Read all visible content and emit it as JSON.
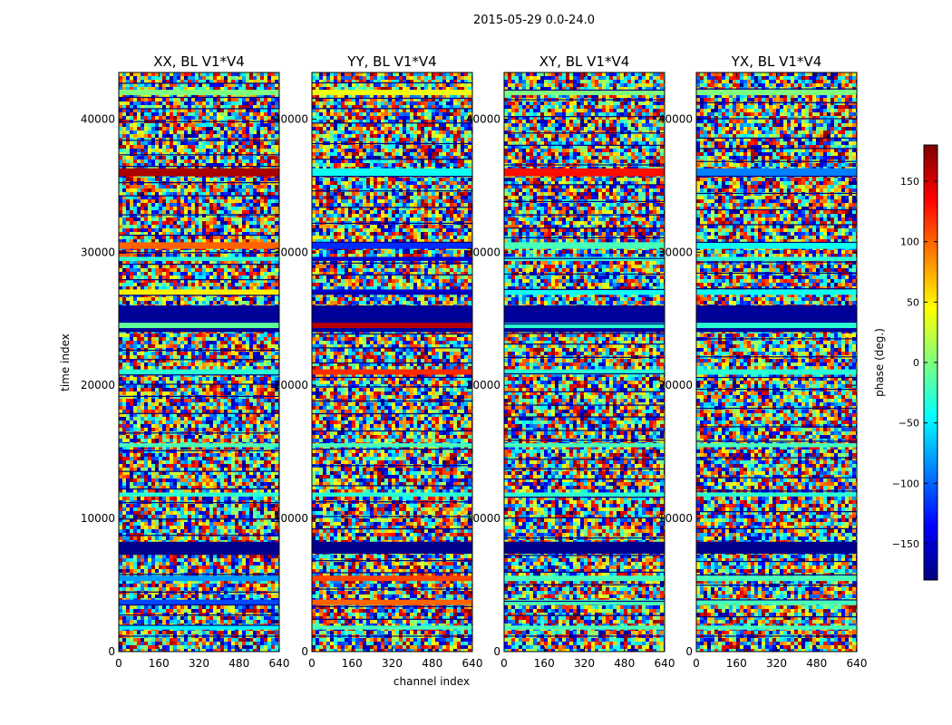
{
  "figure": {
    "suptitle": "2015-05-29 0.0-24.0"
  },
  "chart_data": {
    "type": "heatmap",
    "suptitle": "2015-05-29 0.0-24.0",
    "xlabel": "channel index",
    "ylabel": "time index",
    "xlim": [
      0,
      640
    ],
    "ylim": [
      0,
      43500
    ],
    "xticks": [
      0,
      160,
      320,
      480,
      640
    ],
    "yticks": [
      0,
      10000,
      20000,
      30000,
      40000
    ],
    "panels": [
      {
        "title": "XX, BL V1*V4",
        "pol": "XX"
      },
      {
        "title": "YY, BL V1*V4",
        "pol": "YY"
      },
      {
        "title": "XY, BL V1*V4",
        "pol": "XY"
      },
      {
        "title": "YX, BL V1*V4",
        "pol": "YX"
      }
    ],
    "colorbar": {
      "label": "phase (deg.)",
      "range": [
        -180,
        180
      ],
      "ticks": [
        -150,
        -100,
        -50,
        0,
        50,
        100,
        150
      ],
      "ticklabels": [
        "−150",
        "−100",
        "−50",
        "0",
        "50",
        "100",
        "150"
      ],
      "colormap": "jet",
      "colors": [
        "#00007f",
        "#0000ff",
        "#007fff",
        "#00ffff",
        "#7fff7f",
        "#ffff00",
        "#ff7f00",
        "#ff0000",
        "#7f0000"
      ]
    },
    "bands": [
      {
        "t": 42000,
        "dt": 400,
        "phase": [
          0,
          40,
          0,
          0
        ]
      },
      {
        "t": 36000,
        "dt": 600,
        "phase": [
          165,
          -40,
          130,
          -90
        ]
      },
      {
        "t": 30500,
        "dt": 500,
        "phase": [
          100,
          -120,
          -20,
          -40
        ]
      },
      {
        "t": 29500,
        "dt": 300,
        "phase": [
          -30,
          -150,
          -30,
          -30
        ]
      },
      {
        "t": 27000,
        "dt": 400,
        "phase": [
          50,
          -150,
          -40,
          -40
        ]
      },
      {
        "t": 25000,
        "dt": 2000,
        "phase": [
          -170,
          -170,
          -170,
          -170
        ]
      },
      {
        "t": 24500,
        "dt": 400,
        "phase": [
          -10,
          160,
          -30,
          -30
        ]
      },
      {
        "t": 21000,
        "dt": 400,
        "phase": [
          -30,
          120,
          -30,
          -30
        ]
      },
      {
        "t": 15500,
        "dt": 300,
        "phase": [
          -20,
          -20,
          -20,
          -20
        ]
      },
      {
        "t": 11800,
        "dt": 300,
        "phase": [
          -30,
          -30,
          -30,
          -30
        ]
      },
      {
        "t": 7800,
        "dt": 900,
        "phase": [
          -175,
          -175,
          -175,
          -175
        ]
      },
      {
        "t": 5500,
        "dt": 400,
        "phase": [
          -80,
          110,
          -20,
          -20
        ]
      },
      {
        "t": 3700,
        "dt": 400,
        "phase": [
          -110,
          100,
          -20,
          -20
        ]
      },
      {
        "t": 1800,
        "dt": 300,
        "phase": [
          -50,
          -20,
          -20,
          -20
        ]
      }
    ]
  }
}
